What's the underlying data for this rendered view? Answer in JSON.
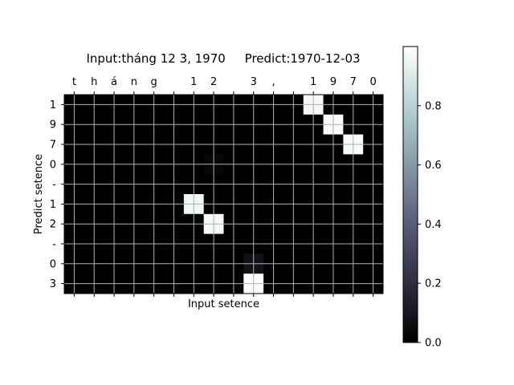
{
  "chart_data": {
    "type": "heatmap",
    "title": "Input:tháng 12 3, 1970     Predict:1970-12-03",
    "xlabel": "Input setence",
    "ylabel": "Predict setence",
    "x_labels": [
      "t",
      "h",
      "á",
      "n",
      "g",
      " ",
      "1",
      "2",
      " ",
      "3",
      ",",
      " ",
      "1",
      "9",
      "7",
      "0"
    ],
    "y_labels": [
      "1",
      "9",
      "7",
      "0",
      "-",
      "1",
      "2",
      "-",
      "0",
      "3"
    ],
    "values": [
      [
        0,
        0,
        0,
        0,
        0,
        0,
        0,
        0,
        0,
        0,
        0,
        0,
        0.97,
        0,
        0,
        0
      ],
      [
        0,
        0,
        0,
        0,
        0,
        0,
        0,
        0,
        0,
        0,
        0,
        0,
        0,
        0.98,
        0,
        0
      ],
      [
        0,
        0,
        0,
        0,
        0,
        0,
        0,
        0,
        0,
        0,
        0,
        0,
        0,
        0,
        0.98,
        0
      ],
      [
        0,
        0,
        0,
        0,
        0,
        0,
        0,
        0.03,
        0,
        0,
        0,
        0,
        0,
        0,
        0,
        0
      ],
      [
        0,
        0,
        0,
        0,
        0,
        0,
        0,
        0,
        0,
        0,
        0,
        0,
        0,
        0,
        0,
        0
      ],
      [
        0,
        0,
        0,
        0,
        0,
        0,
        0.96,
        0,
        0,
        0,
        0,
        0,
        0,
        0,
        0,
        0
      ],
      [
        0,
        0,
        0,
        0,
        0,
        0,
        0,
        0.97,
        0,
        0,
        0,
        0,
        0,
        0,
        0,
        0
      ],
      [
        0,
        0,
        0,
        0,
        0,
        0,
        0,
        0,
        0,
        0,
        0,
        0,
        0,
        0,
        0,
        0
      ],
      [
        0,
        0,
        0,
        0,
        0,
        0,
        0,
        0,
        0,
        0.08,
        0,
        0,
        0,
        0,
        0,
        0
      ],
      [
        0,
        0,
        0,
        0,
        0,
        0,
        0,
        0,
        0,
        0.99,
        0,
        0,
        0,
        0,
        0,
        0
      ]
    ],
    "colormap": "bone",
    "grid": true,
    "colorbar": {
      "range": [
        0,
        1
      ],
      "ticks": [
        0.0,
        0.2,
        0.4,
        0.6,
        0.8
      ],
      "tick_labels": [
        "0.0",
        "0.2",
        "0.4",
        "0.6",
        "0.8"
      ]
    }
  }
}
